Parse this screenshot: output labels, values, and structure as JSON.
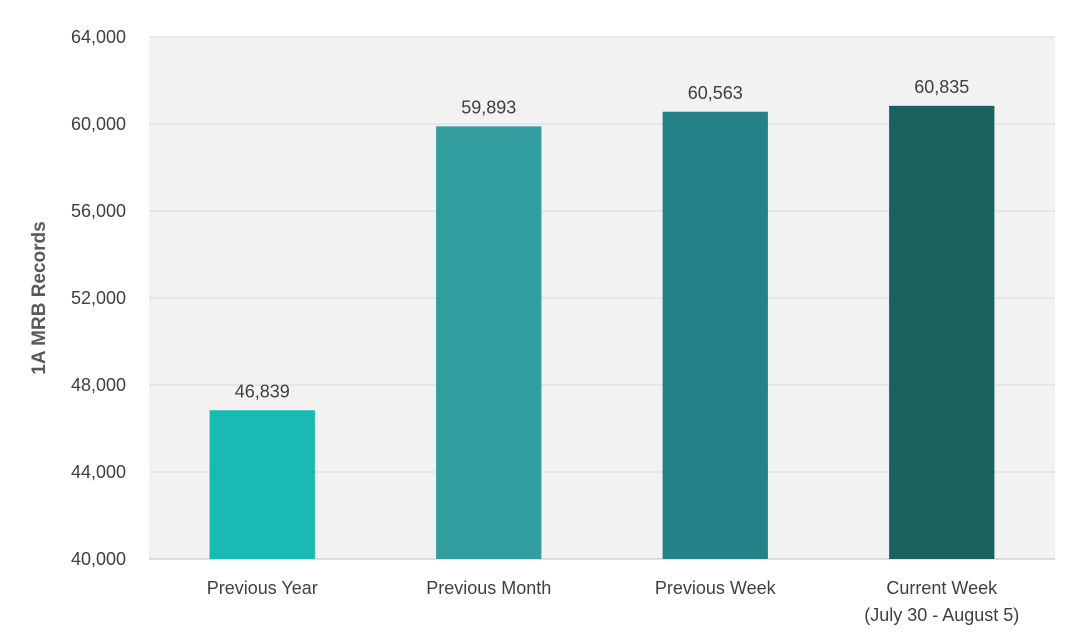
{
  "chart_data": {
    "type": "bar",
    "title": "",
    "xlabel": "",
    "ylabel": "1A MRB Records",
    "categories": [
      [
        "Previous Year"
      ],
      [
        "Previous Month"
      ],
      [
        "Previous Week"
      ],
      [
        "Current Week",
        "(July 30 - August 5)"
      ]
    ],
    "values": [
      46839,
      59893,
      60563,
      60835
    ],
    "data_labels": [
      "46,839",
      "59,893",
      "60,563",
      "60,835"
    ],
    "bar_colors": [
      "#17bbb3",
      "#329e9f",
      "#268289",
      "#1b6160"
    ],
    "ylim": [
      40000,
      64000
    ],
    "yticks": [
      40000,
      44000,
      48000,
      52000,
      56000,
      60000,
      64000
    ],
    "ytick_labels": [
      "40,000",
      "44,000",
      "48,000",
      "52,000",
      "56,000",
      "60,000",
      "64,000"
    ],
    "grid": true,
    "legend": "none",
    "plot_background": "#f2f2f2",
    "gridline_color": "#d9d9d9",
    "text_color": "#404040"
  }
}
